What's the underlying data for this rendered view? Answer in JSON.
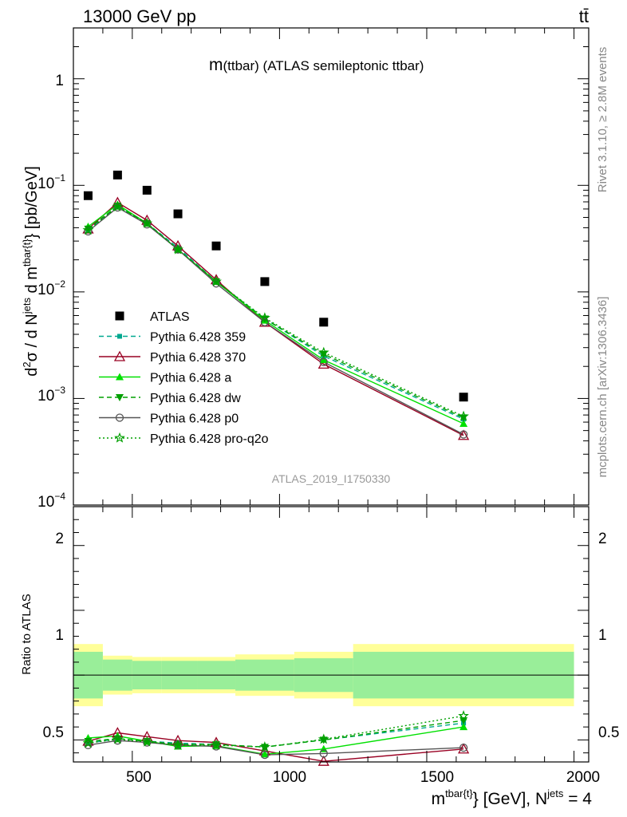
{
  "header": {
    "left": "13000 GeV pp",
    "right": "tt̄",
    "title_main": "m",
    "title_sub": "(ttbar) (ATLAS semileptonic ttbar)",
    "analysis": "ATLAS_2019_I1750330",
    "side_rivet": "Rivet 3.1.10, ≥ 2.8M events",
    "side_mcplots": "mcplots.cern.ch [arXiv:1306.3436]"
  },
  "axes": {
    "main_ylabel": {
      "p1": "d",
      "sup1": "2",
      "p2": "σ / d N",
      "sup2": "jets",
      "p3": " d m",
      "sup3": "tbar{t}",
      "p4": "} [pb/GeV]"
    },
    "ratio_ylabel": "Ratio to ATLAS",
    "xlabel": {
      "p1": "m",
      "sup1": "tbar{t}",
      "p2": "} [GeV], N",
      "sup2": "jets",
      "p3": " = 4"
    },
    "main_ylabels": [
      {
        "base": "10",
        "exp": "−4"
      },
      {
        "base": "10",
        "exp": "−3"
      },
      {
        "base": "10",
        "exp": "−2"
      },
      {
        "base": "10",
        "exp": "−1"
      },
      {
        "base": "1",
        "exp": ""
      }
    ],
    "ratio_ylabels": [
      "0.5",
      "1",
      "2"
    ],
    "xlabels": [
      "500",
      "1000",
      "1500",
      "2000"
    ]
  },
  "chart_data": {
    "type": "scatter",
    "xlim": [
      300,
      2050
    ],
    "main_ylim": [
      0.0001,
      3
    ],
    "main_yscale": "log",
    "ratio_ylim": [
      0.33,
      2.3
    ],
    "ratio_ticks_major": [
      0.5,
      1,
      1.5,
      2
    ],
    "x_ticks_major": [
      500,
      1000,
      1500,
      2000
    ],
    "x_ticks_minor_step": 100,
    "bins": [
      {
        "lo": 300,
        "hi": 400,
        "err1": 0.18,
        "err2": 0.24
      },
      {
        "lo": 400,
        "hi": 500,
        "err1": 0.12,
        "err2": 0.15
      },
      {
        "lo": 500,
        "hi": 600,
        "err1": 0.11,
        "err2": 0.14
      },
      {
        "lo": 600,
        "hi": 720,
        "err1": 0.11,
        "err2": 0.14
      },
      {
        "lo": 720,
        "hi": 850,
        "err1": 0.11,
        "err2": 0.14
      },
      {
        "lo": 850,
        "hi": 1050,
        "err1": 0.12,
        "err2": 0.16
      },
      {
        "lo": 1050,
        "hi": 1250,
        "err1": 0.13,
        "err2": 0.18
      },
      {
        "lo": 1250,
        "hi": 2000,
        "err1": 0.18,
        "err2": 0.24
      }
    ],
    "x": [
      350,
      450,
      550,
      655,
      785,
      950,
      1150,
      1625
    ],
    "data": {
      "name": "ATLAS",
      "values": [
        0.08,
        0.125,
        0.09,
        0.054,
        0.027,
        0.0125,
        0.0052,
        0.00103
      ]
    },
    "series": [
      {
        "name": "Pythia 6.428 359",
        "color": "#00a88f",
        "dash": "6,4",
        "marker": "square",
        "values": [
          0.038,
          0.064,
          0.044,
          0.026,
          0.0125,
          0.0056,
          0.0025,
          0.00064
        ],
        "ratio": [
          0.475,
          0.51,
          0.49,
          0.475,
          0.465,
          0.445,
          0.5,
          0.63
        ]
      },
      {
        "name": "Pythia 6.428 370",
        "color": "#990022",
        "dash": "",
        "marker": "triangle-open",
        "values": [
          0.039,
          0.069,
          0.047,
          0.027,
          0.013,
          0.0052,
          0.0021,
          0.00045
        ],
        "ratio": [
          0.49,
          0.555,
          0.525,
          0.495,
          0.48,
          0.415,
          0.335,
          0.43
        ]
      },
      {
        "name": "Pythia 6.428 a",
        "color": "#00e000",
        "dash": "",
        "marker": "triangle",
        "values": [
          0.041,
          0.066,
          0.044,
          0.025,
          0.0125,
          0.0054,
          0.0023,
          0.00058
        ],
        "ratio": [
          0.515,
          0.53,
          0.49,
          0.45,
          0.455,
          0.39,
          0.43,
          0.6
        ]
      },
      {
        "name": "Pythia 6.428 dw",
        "color": "#00a000",
        "dash": "6,4",
        "marker": "triangle-down",
        "values": [
          0.039,
          0.064,
          0.044,
          0.025,
          0.0125,
          0.0056,
          0.0026,
          0.00066
        ],
        "ratio": [
          0.49,
          0.51,
          0.49,
          0.465,
          0.465,
          0.445,
          0.5,
          0.65
        ]
      },
      {
        "name": "Pythia 6.428 p0",
        "color": "#555555",
        "dash": "",
        "marker": "circle-open",
        "values": [
          0.037,
          0.062,
          0.043,
          0.025,
          0.012,
          0.0052,
          0.0022,
          0.00046
        ],
        "ratio": [
          0.46,
          0.495,
          0.48,
          0.46,
          0.45,
          0.385,
          0.395,
          0.44
        ]
      },
      {
        "name": "Pythia 6.428 pro-q2o",
        "color": "#00a000",
        "dash": "2,3",
        "marker": "star",
        "values": [
          0.038,
          0.063,
          0.044,
          0.025,
          0.0125,
          0.0057,
          0.0027,
          0.00068
        ],
        "ratio": [
          0.475,
          0.505,
          0.485,
          0.46,
          0.46,
          0.445,
          0.505,
          0.685
        ]
      }
    ]
  }
}
